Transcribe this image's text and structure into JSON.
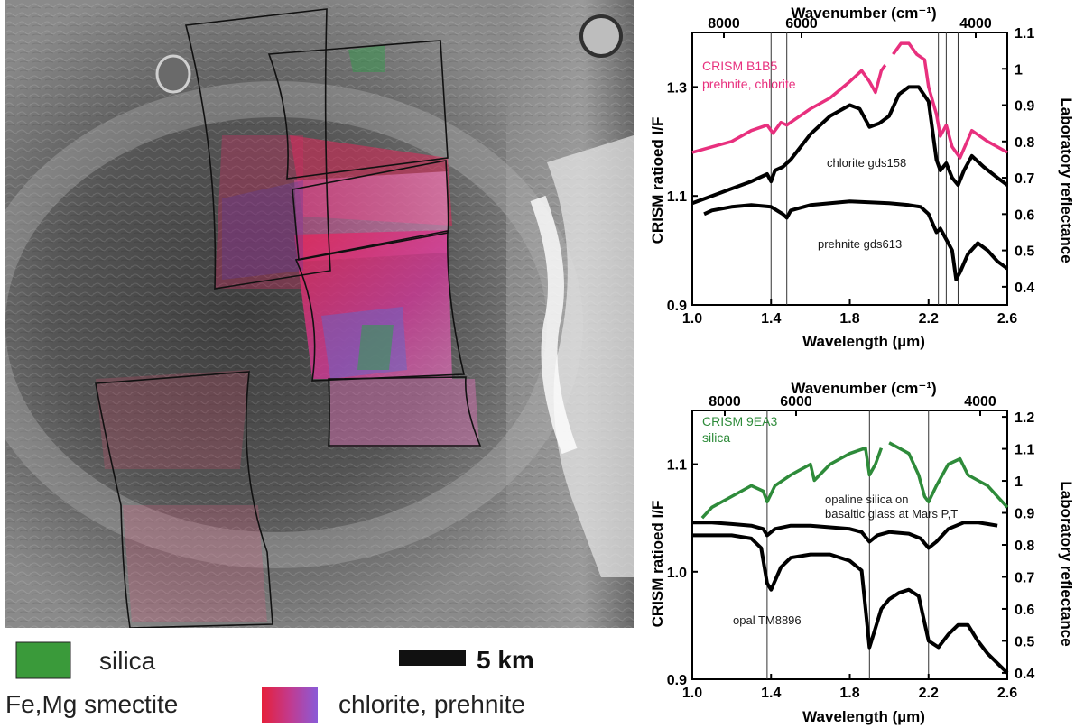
{
  "map": {
    "legend": {
      "silica_label": "silica",
      "smectite_label": "Fe,Mg smectite",
      "chlorite_label": "chlorite, prehnite",
      "scale_label": "5 km",
      "silica_color": "#3a9a3a",
      "smectite_gradient": [
        "#e6203a",
        "#c23a8e",
        "#8a5bd8"
      ]
    }
  },
  "chart_data": [
    {
      "type": "line",
      "x_axis": {
        "label": "Wavelength (µm)",
        "range": [
          1.0,
          2.6
        ],
        "ticks": [
          "1.0",
          "1.4",
          "1.8",
          "2.2",
          "2.6"
        ]
      },
      "x2_axis": {
        "label": "Wavenumber (cm⁻¹)",
        "ticks": [
          "8000",
          "6000",
          "4000"
        ]
      },
      "y_axis": {
        "label": "CRISM ratioed I/F",
        "range": [
          0.9,
          1.4
        ],
        "ticks": [
          "0.9",
          "1.1",
          "1.3"
        ]
      },
      "y2_axis": {
        "label": "Laboratory reflectance",
        "range": [
          0.35,
          1.1
        ],
        "ticks": [
          "0.4",
          "0.5",
          "0.6",
          "0.7",
          "0.8",
          "0.9",
          "1",
          "1.1"
        ]
      },
      "vlines": [
        1.4,
        1.48,
        2.25,
        2.29,
        2.35
      ],
      "series": [
        {
          "name": "CRISM B1B5\nprehnite, chlorite",
          "axis": "left",
          "color": "#e8307e",
          "x": [
            1.0,
            1.1,
            1.2,
            1.3,
            1.38,
            1.41,
            1.45,
            1.48,
            1.52,
            1.6,
            1.7,
            1.8,
            1.86,
            1.9,
            1.93,
            1.96,
            1.98
          ],
          "y": [
            1.18,
            1.19,
            1.2,
            1.22,
            1.23,
            1.215,
            1.235,
            1.23,
            1.24,
            1.26,
            1.28,
            1.31,
            1.33,
            1.31,
            1.29,
            1.33,
            1.34
          ]
        },
        {
          "name": "",
          "axis": "left",
          "color": "#e8307e",
          "x": [
            2.02,
            2.06,
            2.1,
            2.14,
            2.18,
            2.2,
            2.24,
            2.26,
            2.29,
            2.32,
            2.36,
            2.42,
            2.5,
            2.6
          ],
          "y": [
            1.36,
            1.38,
            1.38,
            1.36,
            1.35,
            1.3,
            1.25,
            1.21,
            1.23,
            1.19,
            1.17,
            1.22,
            1.2,
            1.18
          ]
        },
        {
          "name": "chlorite gds158",
          "axis": "right",
          "color": "#000000",
          "x": [
            1.0,
            1.1,
            1.2,
            1.3,
            1.38,
            1.4,
            1.42,
            1.46,
            1.5,
            1.6,
            1.7,
            1.8,
            1.85,
            1.9,
            1.95,
            2.0,
            2.05,
            2.1,
            2.15,
            2.2,
            2.24,
            2.26,
            2.29,
            2.32,
            2.35,
            2.38,
            2.42,
            2.48,
            2.55,
            2.6
          ],
          "y": [
            0.63,
            0.65,
            0.67,
            0.69,
            0.71,
            0.69,
            0.72,
            0.73,
            0.75,
            0.82,
            0.87,
            0.9,
            0.89,
            0.84,
            0.85,
            0.87,
            0.93,
            0.95,
            0.95,
            0.91,
            0.75,
            0.72,
            0.74,
            0.7,
            0.68,
            0.72,
            0.76,
            0.73,
            0.7,
            0.68
          ]
        },
        {
          "name": "prehnite gds613",
          "axis": "right",
          "color": "#000000",
          "x": [
            1.06,
            1.1,
            1.2,
            1.3,
            1.4,
            1.46,
            1.48,
            1.5,
            1.6,
            1.8,
            2.0,
            2.1,
            2.16,
            2.2,
            2.24,
            2.26,
            2.29,
            2.32,
            2.34,
            2.36,
            2.4,
            2.45,
            2.5,
            2.55,
            2.6
          ],
          "y": [
            0.6,
            0.61,
            0.62,
            0.625,
            0.62,
            0.6,
            0.59,
            0.61,
            0.625,
            0.635,
            0.63,
            0.625,
            0.62,
            0.6,
            0.55,
            0.56,
            0.53,
            0.5,
            0.42,
            0.44,
            0.49,
            0.52,
            0.5,
            0.47,
            0.45
          ]
        }
      ],
      "annotations": [
        "chlorite gds158",
        "prehnite gds613"
      ]
    },
    {
      "type": "line",
      "x_axis": {
        "label": "Wavelength (µm)",
        "range": [
          1.0,
          2.6
        ],
        "ticks": [
          "1.0",
          "1.4",
          "1.8",
          "2.2",
          "2.6"
        ]
      },
      "x2_axis": {
        "label": "Wavenumber (cm⁻¹)",
        "ticks": [
          "8000",
          "6000",
          "4000"
        ]
      },
      "y_axis": {
        "label": "CRISM ratioed I/F",
        "range": [
          0.9,
          1.15
        ],
        "ticks": [
          "0.9",
          "1.0",
          "1.1"
        ]
      },
      "y2_axis": {
        "label": "Laboratory reflectance",
        "range": [
          0.38,
          1.22
        ],
        "ticks": [
          "0.4",
          "0.5",
          "0.6",
          "0.7",
          "0.8",
          "0.9",
          "1",
          "1.1",
          "1.2"
        ]
      },
      "vlines": [
        1.38,
        1.9,
        2.2
      ],
      "series": [
        {
          "name": "CRISM 9EA3\nsilica",
          "axis": "left",
          "color": "#2e8b3a",
          "x": [
            1.05,
            1.1,
            1.2,
            1.3,
            1.36,
            1.38,
            1.42,
            1.5,
            1.6,
            1.62,
            1.7,
            1.8,
            1.88,
            1.9,
            1.93,
            1.96
          ],
          "y": [
            1.05,
            1.06,
            1.07,
            1.08,
            1.075,
            1.065,
            1.08,
            1.09,
            1.1,
            1.085,
            1.1,
            1.11,
            1.115,
            1.09,
            1.1,
            1.115
          ]
        },
        {
          "name": "",
          "axis": "left",
          "color": "#2e8b3a",
          "x": [
            2.0,
            2.05,
            2.1,
            2.15,
            2.18,
            2.2,
            2.24,
            2.3,
            2.36,
            2.4,
            2.45,
            2.5,
            2.55,
            2.6
          ],
          "y": [
            1.12,
            1.115,
            1.11,
            1.09,
            1.07,
            1.065,
            1.08,
            1.1,
            1.105,
            1.09,
            1.085,
            1.08,
            1.07,
            1.06
          ]
        },
        {
          "name": "opaline silica on\nbasaltic glass at Mars P,T",
          "axis": "right",
          "color": "#000000",
          "x": [
            1.0,
            1.1,
            1.2,
            1.3,
            1.36,
            1.38,
            1.42,
            1.5,
            1.6,
            1.7,
            1.8,
            1.86,
            1.9,
            1.94,
            2.0,
            2.1,
            2.16,
            2.2,
            2.24,
            2.3,
            2.38,
            2.45,
            2.5,
            2.55
          ],
          "y": [
            0.87,
            0.87,
            0.865,
            0.86,
            0.85,
            0.83,
            0.85,
            0.86,
            0.86,
            0.855,
            0.85,
            0.84,
            0.81,
            0.83,
            0.84,
            0.835,
            0.82,
            0.79,
            0.81,
            0.85,
            0.87,
            0.87,
            0.865,
            0.86
          ]
        },
        {
          "name": "opal TM8896",
          "axis": "right",
          "color": "#000000",
          "x": [
            1.0,
            1.1,
            1.2,
            1.3,
            1.35,
            1.38,
            1.4,
            1.45,
            1.5,
            1.6,
            1.7,
            1.8,
            1.86,
            1.9,
            1.92,
            1.96,
            2.0,
            2.05,
            2.1,
            2.15,
            2.2,
            2.25,
            2.3,
            2.35,
            2.4,
            2.45,
            2.5,
            2.55,
            2.6
          ],
          "y": [
            0.83,
            0.83,
            0.83,
            0.82,
            0.79,
            0.68,
            0.66,
            0.73,
            0.76,
            0.77,
            0.77,
            0.75,
            0.72,
            0.48,
            0.52,
            0.6,
            0.63,
            0.65,
            0.66,
            0.64,
            0.5,
            0.48,
            0.52,
            0.55,
            0.55,
            0.5,
            0.46,
            0.43,
            0.4
          ]
        }
      ],
      "annotations": [
        "opaline silica on",
        "basaltic glass at Mars P,T",
        "opal TM8896"
      ]
    }
  ]
}
